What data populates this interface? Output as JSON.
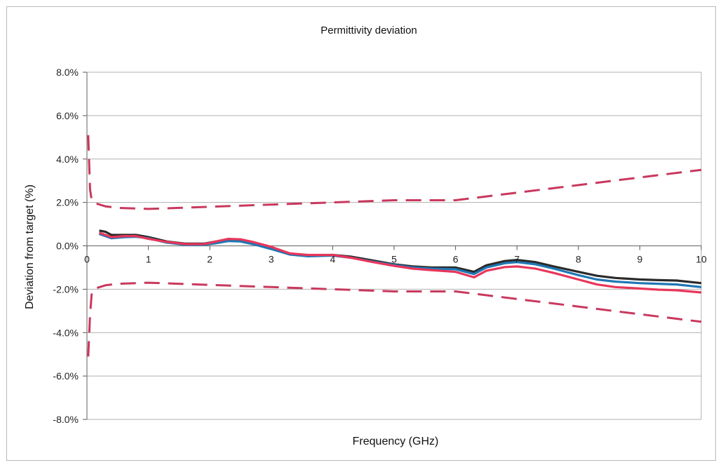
{
  "chart_data": {
    "type": "line",
    "title": "Permittivity deviation",
    "xlabel": "Frequency (GHz)",
    "ylabel": "Deviation from target (%)",
    "xlim": [
      0,
      10
    ],
    "ylim": [
      -8,
      8
    ],
    "grid": "horizontal",
    "legend": "none",
    "x_ticks": [
      "0",
      "1",
      "2",
      "3",
      "4",
      "5",
      "6",
      "7",
      "8",
      "9",
      "10"
    ],
    "y_ticks": [
      "8.0%",
      "6.0%",
      "4.0%",
      "2.0%",
      "0.0%",
      "-2.0%",
      "-4.0%",
      "-6.0%",
      "-8.0%"
    ],
    "series": [
      {
        "color": "#2a2a2a",
        "style": "solid",
        "x": [
          0.2,
          0.3,
          0.4,
          0.6,
          0.8,
          1.0,
          1.3,
          1.6,
          1.9,
          2.1,
          2.3,
          2.5,
          2.7,
          3.0,
          3.3,
          3.6,
          4.0,
          4.3,
          4.6,
          5.0,
          5.3,
          5.6,
          6.0,
          6.3,
          6.5,
          6.8,
          7.0,
          7.3,
          7.6,
          8.0,
          8.3,
          8.6,
          9.0,
          9.3,
          9.6,
          10.0
        ],
        "y": [
          0.7,
          0.65,
          0.5,
          0.5,
          0.5,
          0.4,
          0.2,
          0.1,
          0.1,
          0.2,
          0.3,
          0.28,
          0.15,
          -0.1,
          -0.35,
          -0.45,
          -0.42,
          -0.5,
          -0.65,
          -0.85,
          -0.95,
          -1.0,
          -1.0,
          -1.2,
          -0.9,
          -0.7,
          -0.65,
          -0.75,
          -0.95,
          -1.2,
          -1.38,
          -1.48,
          -1.55,
          -1.58,
          -1.6,
          -1.72
        ]
      },
      {
        "color": "#1f77b4",
        "style": "solid",
        "x": [
          0.2,
          0.3,
          0.4,
          0.6,
          0.8,
          1.0,
          1.3,
          1.6,
          1.9,
          2.1,
          2.3,
          2.5,
          2.7,
          3.0,
          3.3,
          3.6,
          4.0,
          4.3,
          4.6,
          5.0,
          5.3,
          5.6,
          6.0,
          6.3,
          6.5,
          6.8,
          7.0,
          7.3,
          7.6,
          8.0,
          8.3,
          8.6,
          9.0,
          9.3,
          9.6,
          10.0
        ],
        "y": [
          0.55,
          0.45,
          0.35,
          0.4,
          0.42,
          0.35,
          0.15,
          0.05,
          0.05,
          0.12,
          0.22,
          0.2,
          0.08,
          -0.15,
          -0.4,
          -0.48,
          -0.45,
          -0.55,
          -0.7,
          -0.88,
          -1.0,
          -1.05,
          -1.08,
          -1.3,
          -1.0,
          -0.8,
          -0.75,
          -0.85,
          -1.05,
          -1.35,
          -1.55,
          -1.65,
          -1.72,
          -1.75,
          -1.78,
          -1.9
        ]
      },
      {
        "color": "#e8365a",
        "style": "solid",
        "x": [
          0.2,
          0.3,
          0.4,
          0.6,
          0.8,
          1.0,
          1.3,
          1.6,
          1.9,
          2.1,
          2.3,
          2.5,
          2.7,
          3.0,
          3.3,
          3.6,
          4.0,
          4.3,
          4.6,
          5.0,
          5.3,
          5.6,
          6.0,
          6.3,
          6.5,
          6.8,
          7.0,
          7.3,
          7.6,
          8.0,
          8.3,
          8.6,
          9.0,
          9.3,
          9.6,
          10.0
        ],
        "y": [
          0.6,
          0.5,
          0.4,
          0.45,
          0.45,
          0.32,
          0.18,
          0.08,
          0.08,
          0.2,
          0.32,
          0.3,
          0.18,
          -0.05,
          -0.35,
          -0.42,
          -0.42,
          -0.55,
          -0.72,
          -0.92,
          -1.05,
          -1.12,
          -1.2,
          -1.45,
          -1.15,
          -0.98,
          -0.95,
          -1.05,
          -1.25,
          -1.55,
          -1.78,
          -1.9,
          -1.97,
          -2.02,
          -2.05,
          -2.15
        ]
      },
      {
        "color": "#c9385d",
        "style": "dashed",
        "x": [
          0.02,
          0.05,
          0.08,
          0.15,
          0.3,
          0.5,
          1.0,
          1.5,
          2.0,
          3.0,
          4.0,
          5.0,
          6.0,
          7.0,
          8.0,
          9.0,
          10.0
        ],
        "y": [
          5.1,
          2.6,
          2.05,
          1.95,
          1.82,
          1.75,
          1.7,
          1.75,
          1.8,
          1.9,
          2.0,
          2.1,
          2.1,
          2.45,
          2.8,
          3.15,
          3.5
        ]
      },
      {
        "color": "#c9385d",
        "style": "dashed",
        "x": [
          0.02,
          0.05,
          0.08,
          0.15,
          0.3,
          0.5,
          1.0,
          1.5,
          2.0,
          3.0,
          4.0,
          5.0,
          6.0,
          7.0,
          8.0,
          9.0,
          10.0
        ],
        "y": [
          -5.1,
          -3.2,
          -2.1,
          -1.95,
          -1.82,
          -1.75,
          -1.7,
          -1.75,
          -1.8,
          -1.9,
          -2.0,
          -2.1,
          -2.1,
          -2.45,
          -2.8,
          -3.15,
          -3.5
        ]
      }
    ]
  }
}
